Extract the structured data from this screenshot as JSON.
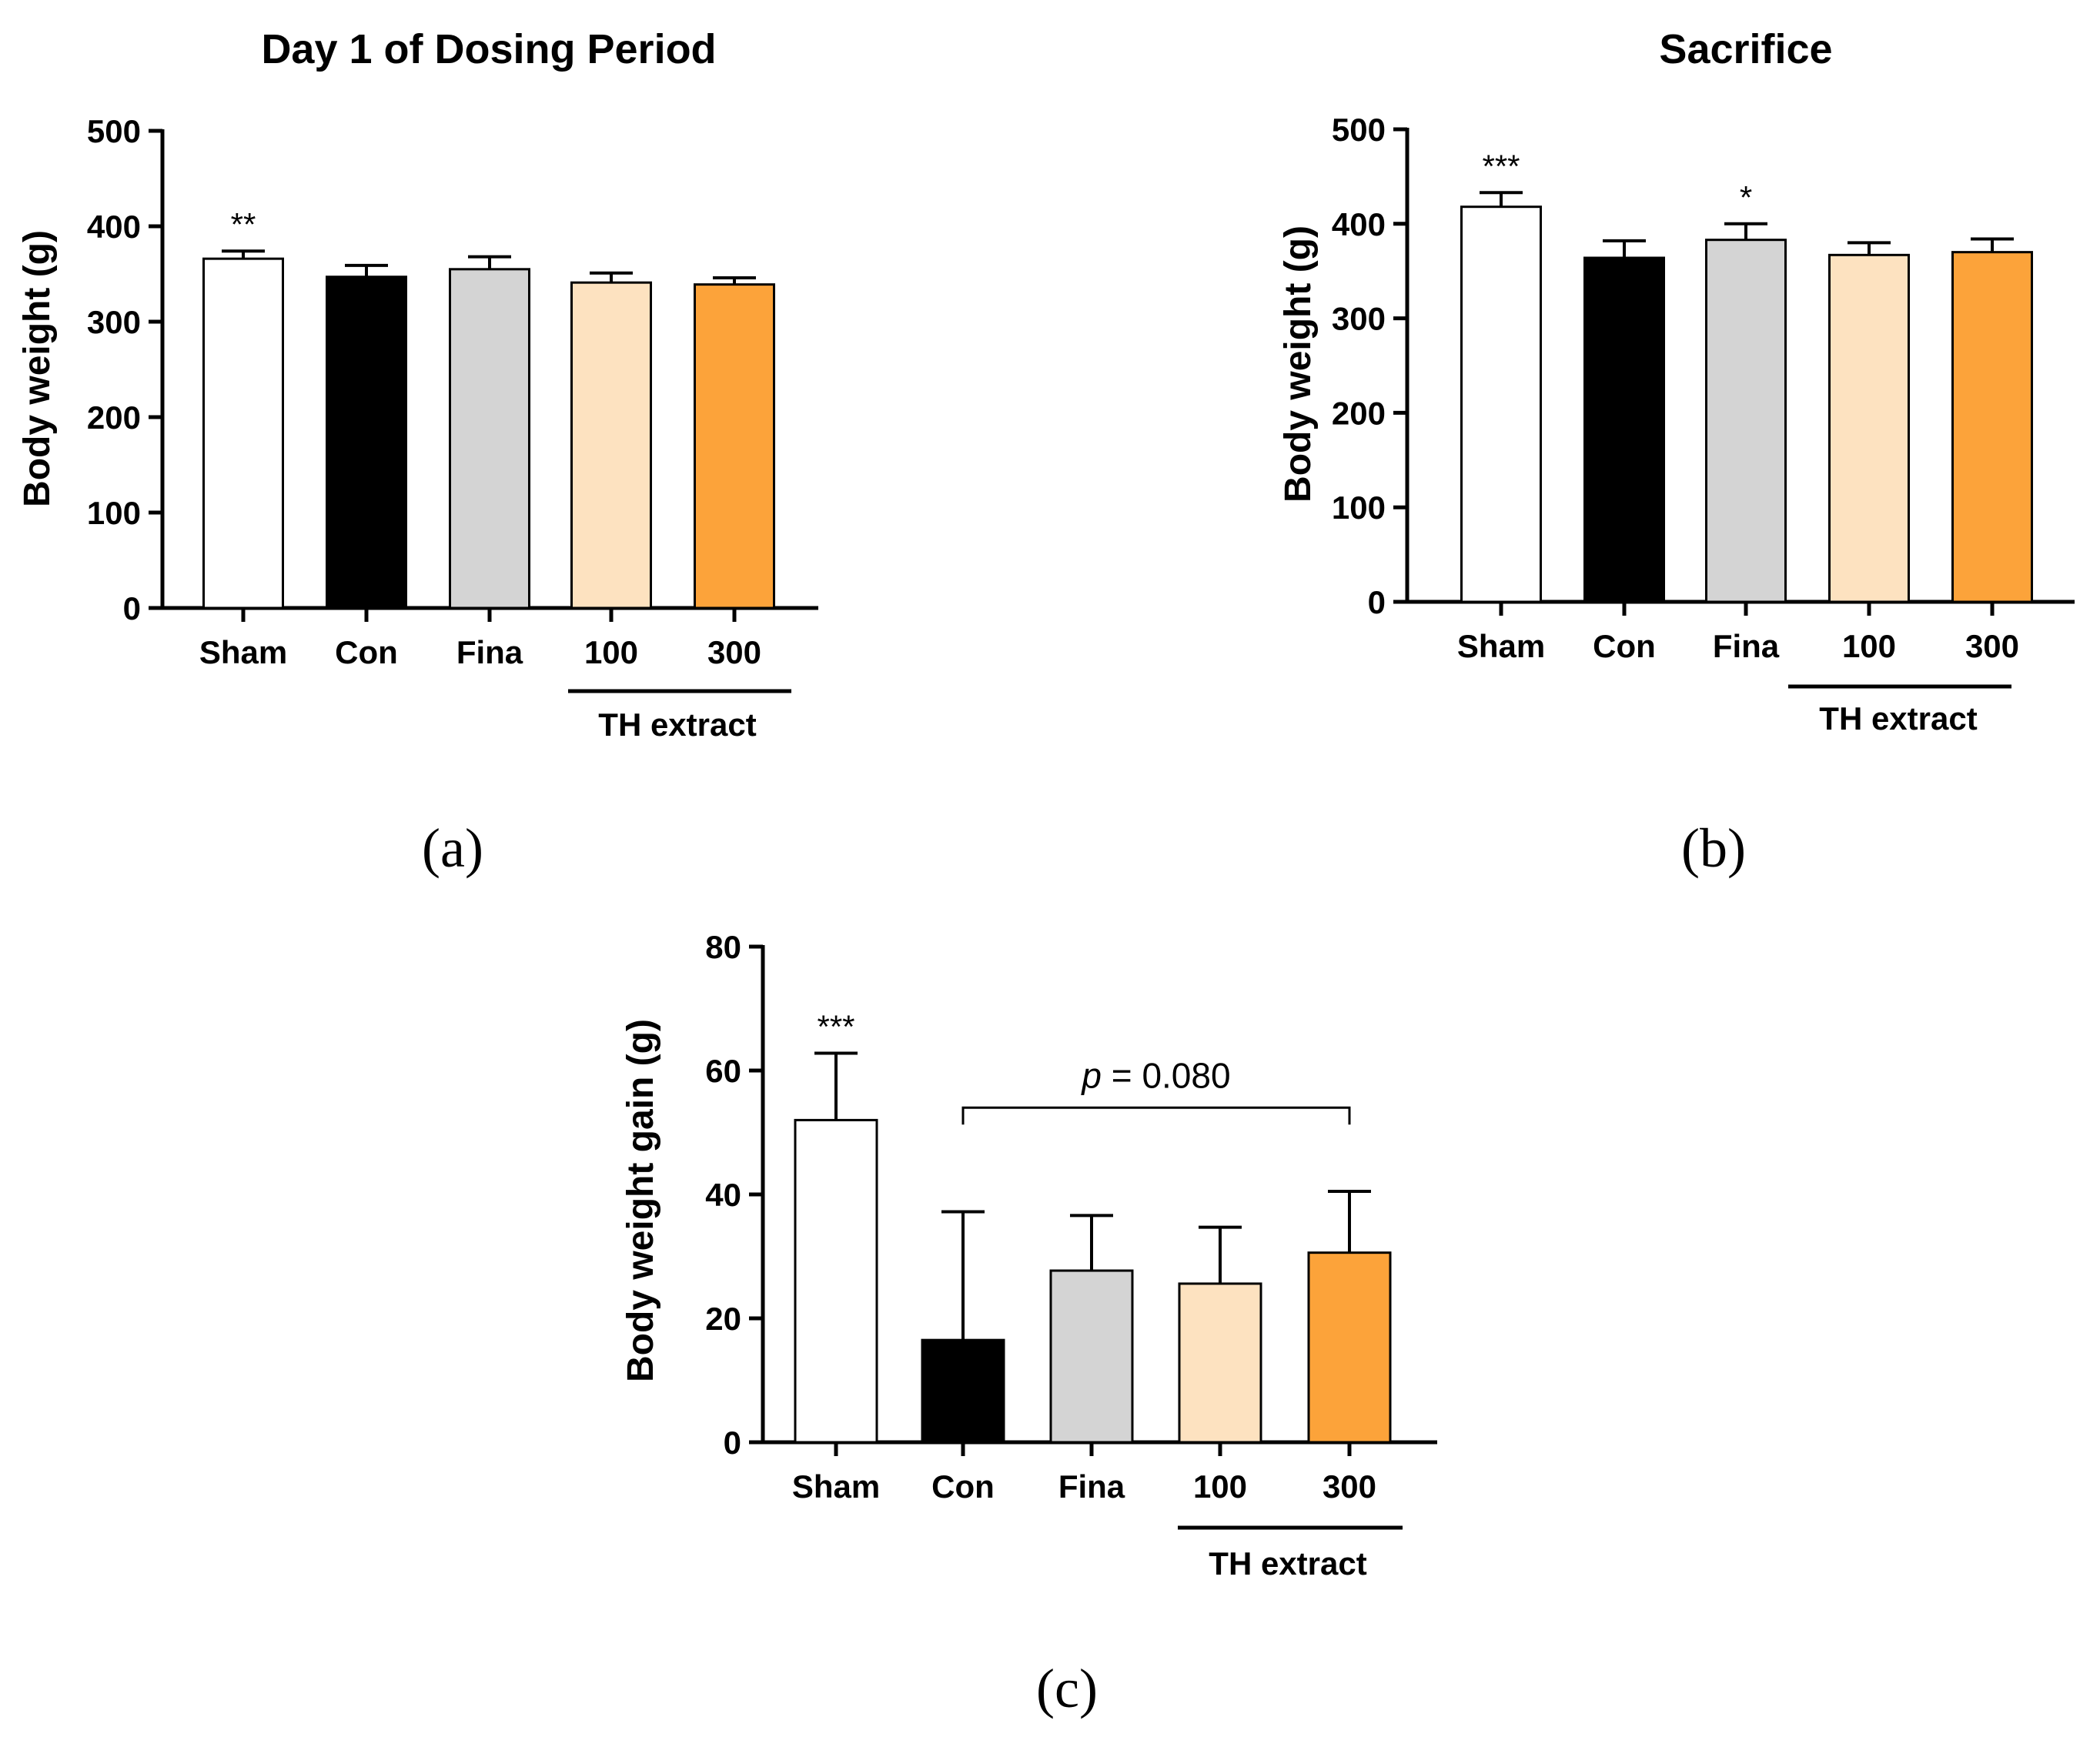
{
  "chart_data": [
    {
      "type": "bar",
      "panel_label": "(a)",
      "title": "Day 1 of Dosing Period",
      "ylabel": "Body weight (g)",
      "xlabel": "",
      "ylim": [
        0,
        500
      ],
      "yticks": [
        "0",
        "100",
        "200",
        "300",
        "400",
        "500"
      ],
      "categories": [
        "Sham",
        "Con",
        "Fina",
        "100",
        "300"
      ],
      "values": [
        366,
        347,
        355,
        341,
        339
      ],
      "errors": [
        8,
        12,
        13,
        10,
        7
      ],
      "colors": [
        "#ffffff",
        "#000000",
        "#d4d4d4",
        "#fde2c0",
        "#fca33a"
      ],
      "significance": [
        "**",
        "",
        "",
        "",
        ""
      ],
      "group_label": "TH extract",
      "group_categories": [
        "100",
        "300"
      ],
      "bracket": null
    },
    {
      "type": "bar",
      "panel_label": "(b)",
      "title": "Sacrifice",
      "ylabel": "Body weight (g)",
      "xlabel": "",
      "ylim": [
        0,
        500
      ],
      "yticks": [
        "0",
        "100",
        "200",
        "300",
        "400",
        "500"
      ],
      "categories": [
        "Sham",
        "Con",
        "Fina",
        "100",
        "300"
      ],
      "values": [
        418,
        364,
        383,
        367,
        370
      ],
      "errors": [
        15,
        18,
        17,
        13,
        14
      ],
      "colors": [
        "#ffffff",
        "#000000",
        "#d4d4d4",
        "#fde2c0",
        "#fca33a"
      ],
      "significance": [
        "***",
        "",
        "*",
        "",
        ""
      ],
      "group_label": "TH extract",
      "group_categories": [
        "100",
        "300"
      ],
      "bracket": null
    },
    {
      "type": "bar",
      "panel_label": "(c)",
      "title": "",
      "ylabel": "Body weight gain (g)",
      "xlabel": "",
      "ylim": [
        0,
        80
      ],
      "yticks": [
        "0",
        "20",
        "40",
        "60",
        "80"
      ],
      "categories": [
        "Sham",
        "Con",
        "Fina",
        "100",
        "300"
      ],
      "values": [
        52,
        16.5,
        27.7,
        25.6,
        30.6
      ],
      "errors": [
        10.8,
        20.7,
        8.9,
        9.1,
        9.9
      ],
      "colors": [
        "#ffffff",
        "#000000",
        "#d4d4d4",
        "#fde2c0",
        "#fca33a"
      ],
      "significance": [
        "***",
        "",
        "",
        "",
        ""
      ],
      "group_label": "TH extract",
      "group_categories": [
        "100",
        "300"
      ],
      "bracket": {
        "from": "Con",
        "to": "300",
        "value": 54,
        "label_p": "p",
        "label_rest": " = 0.080"
      }
    }
  ]
}
